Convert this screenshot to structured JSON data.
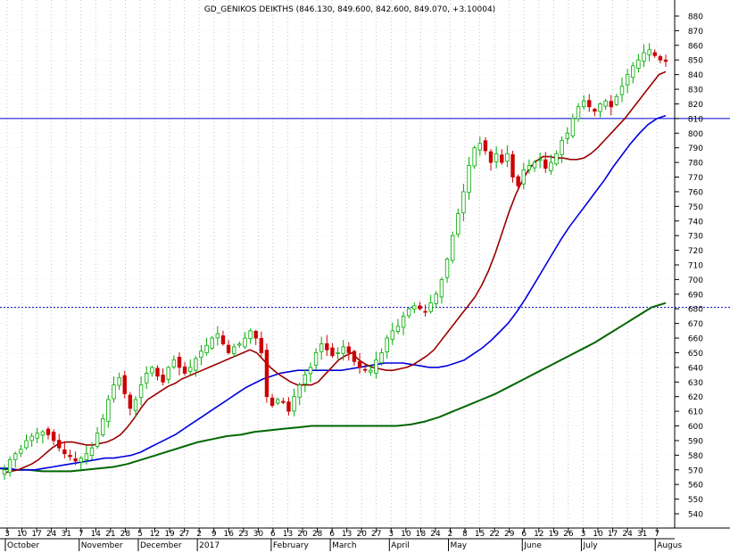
{
  "chart_data": {
    "type": "candlestick",
    "title": "GD_GENIKOS DEIKTHS (846.130, 849.600, 842.600, 849.070, +3.10004)",
    "ylim": [
      535,
      885
    ],
    "y_ticks": [
      880,
      870,
      860,
      850,
      840,
      830,
      820,
      810,
      800,
      790,
      780,
      770,
      760,
      750,
      740,
      730,
      720,
      710,
      700,
      690,
      680,
      670,
      660,
      650,
      640,
      630,
      620,
      610,
      600,
      590,
      580,
      570,
      560,
      550,
      540
    ],
    "x_day_ticks": [
      "3",
      "10",
      "17",
      "24",
      "31",
      "7",
      "14",
      "21",
      "28",
      "5",
      "12",
      "19",
      "27",
      "2",
      "9",
      "16",
      "23",
      "30",
      "6",
      "13",
      "20",
      "28",
      "6",
      "13",
      "20",
      "27",
      "3",
      "10",
      "18",
      "24",
      "2",
      "8",
      "15",
      "22",
      "29",
      "6",
      "12",
      "19",
      "26",
      "3",
      "10",
      "17",
      "24",
      "31",
      "7"
    ],
    "x_month_labels": [
      "October",
      "November",
      "December",
      "2017",
      "February",
      "March",
      "April",
      "May",
      "June",
      "July",
      "Augus"
    ],
    "horizontal_lines": [
      {
        "value": 810,
        "color": "#0000cc"
      },
      {
        "value": 681,
        "color": "#0000cc"
      }
    ],
    "grid": "dotted vertical",
    "colors": {
      "up": "#00aa00",
      "down": "#cc0000",
      "ma_short": "#990000",
      "ma_mid": "#0000dd",
      "ma_long": "#006600"
    },
    "close": [
      570,
      577,
      581,
      584,
      590,
      593,
      595,
      596,
      594,
      590,
      585,
      581,
      579,
      576,
      578,
      581,
      585,
      595,
      605,
      618,
      628,
      633,
      622,
      612,
      618,
      628,
      636,
      640,
      634,
      630,
      640,
      645,
      640,
      636,
      640,
      646,
      651,
      655,
      660,
      663,
      656,
      650,
      654,
      656,
      660,
      665,
      660,
      650,
      620,
      614,
      618,
      616,
      610,
      620,
      628,
      635,
      640,
      650,
      656,
      652,
      648,
      650,
      654,
      650,
      644,
      640,
      638,
      638,
      645,
      650,
      660,
      665,
      668,
      675,
      680,
      682,
      680,
      678,
      684,
      690,
      700,
      714,
      730,
      745,
      760,
      778,
      790,
      793,
      788,
      780,
      786,
      780,
      786,
      770,
      764,
      775,
      778,
      780,
      782,
      776,
      780,
      786,
      795,
      800,
      810,
      818,
      822,
      818,
      815,
      820,
      822,
      818,
      825,
      832,
      840,
      846,
      850,
      855,
      857,
      853,
      850,
      849
    ],
    "ma_short": [
      568,
      569,
      570,
      572,
      574,
      577,
      581,
      585,
      588,
      589,
      589,
      588,
      587,
      587,
      588,
      589,
      591,
      594,
      599,
      605,
      612,
      618,
      621,
      624,
      627,
      629,
      632,
      634,
      636,
      638,
      640,
      642,
      644,
      646,
      648,
      650,
      652,
      650,
      645,
      640,
      636,
      633,
      630,
      628,
      628,
      628,
      630,
      635,
      640,
      645,
      648,
      650,
      645,
      642,
      640,
      639,
      638,
      638,
      639,
      640,
      642,
      645,
      648,
      652,
      658,
      664,
      670,
      676,
      682,
      688,
      696,
      706,
      718,
      732,
      746,
      758,
      768,
      776,
      781,
      784,
      784,
      783,
      783,
      782,
      782,
      783,
      786,
      790,
      795,
      800,
      805,
      810,
      816,
      822,
      828,
      834,
      840,
      842
    ],
    "ma_mid": [
      571,
      571,
      570,
      570,
      570,
      571,
      572,
      573,
      574,
      575,
      576,
      577,
      578,
      578,
      579,
      580,
      582,
      585,
      588,
      591,
      594,
      598,
      602,
      606,
      610,
      614,
      618,
      622,
      626,
      629,
      632,
      634,
      636,
      637,
      638,
      638,
      638,
      638,
      638,
      638,
      639,
      640,
      641,
      642,
      643,
      643,
      643,
      642,
      641,
      640,
      640,
      641,
      643,
      645,
      649,
      653,
      658,
      664,
      670,
      678,
      687,
      697,
      707,
      717,
      727,
      736,
      744,
      752,
      760,
      768,
      777,
      785,
      793,
      800,
      806,
      810,
      812
    ],
    "ma_long": [
      571,
      570,
      570,
      569,
      569,
      569,
      570,
      571,
      572,
      574,
      577,
      580,
      583,
      586,
      589,
      591,
      593,
      594,
      596,
      597,
      598,
      599,
      600,
      600,
      600,
      600,
      600,
      600,
      600,
      601,
      603,
      606,
      610,
      614,
      618,
      622,
      627,
      632,
      637,
      642,
      647,
      652,
      657,
      663,
      669,
      675,
      681,
      684
    ]
  }
}
